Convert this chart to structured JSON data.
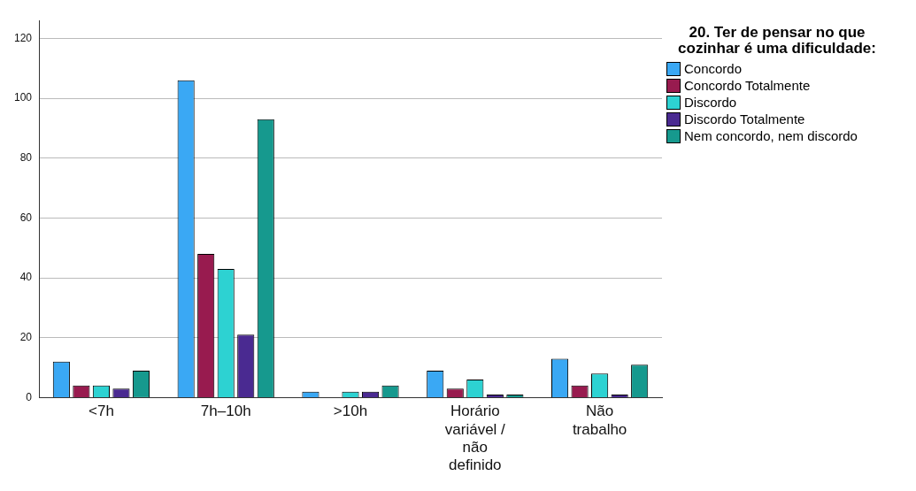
{
  "chart_data": {
    "type": "bar",
    "legend_title": "20. Ter de pensar no que cozinhar é uma dificuldade:",
    "categories": [
      "<7h",
      "7h–10h",
      ">10h",
      "Horário variável / não definido",
      "Não trabalho"
    ],
    "series": [
      {
        "name": "Concordo",
        "color": "#3aa8f4",
        "values": [
          12,
          106,
          2,
          9,
          13
        ]
      },
      {
        "name": "Concordo Totalmente",
        "color": "#981b4f",
        "values": [
          4,
          48,
          null,
          3,
          4
        ]
      },
      {
        "name": "Discordo",
        "color": "#2dd2d2",
        "values": [
          4,
          43,
          2,
          6,
          8
        ]
      },
      {
        "name": "Discordo Totalmente",
        "color": "#4a2a91",
        "values": [
          3,
          21,
          2,
          1,
          1
        ]
      },
      {
        "name": "Nem concordo, nem discordo",
        "color": "#16998e",
        "values": [
          9,
          93,
          4,
          1,
          11
        ]
      }
    ],
    "ylim": [
      0,
      126
    ],
    "yticks": [
      0,
      20,
      40,
      60,
      80,
      100,
      120
    ],
    "grid": "y",
    "legend": "right"
  }
}
